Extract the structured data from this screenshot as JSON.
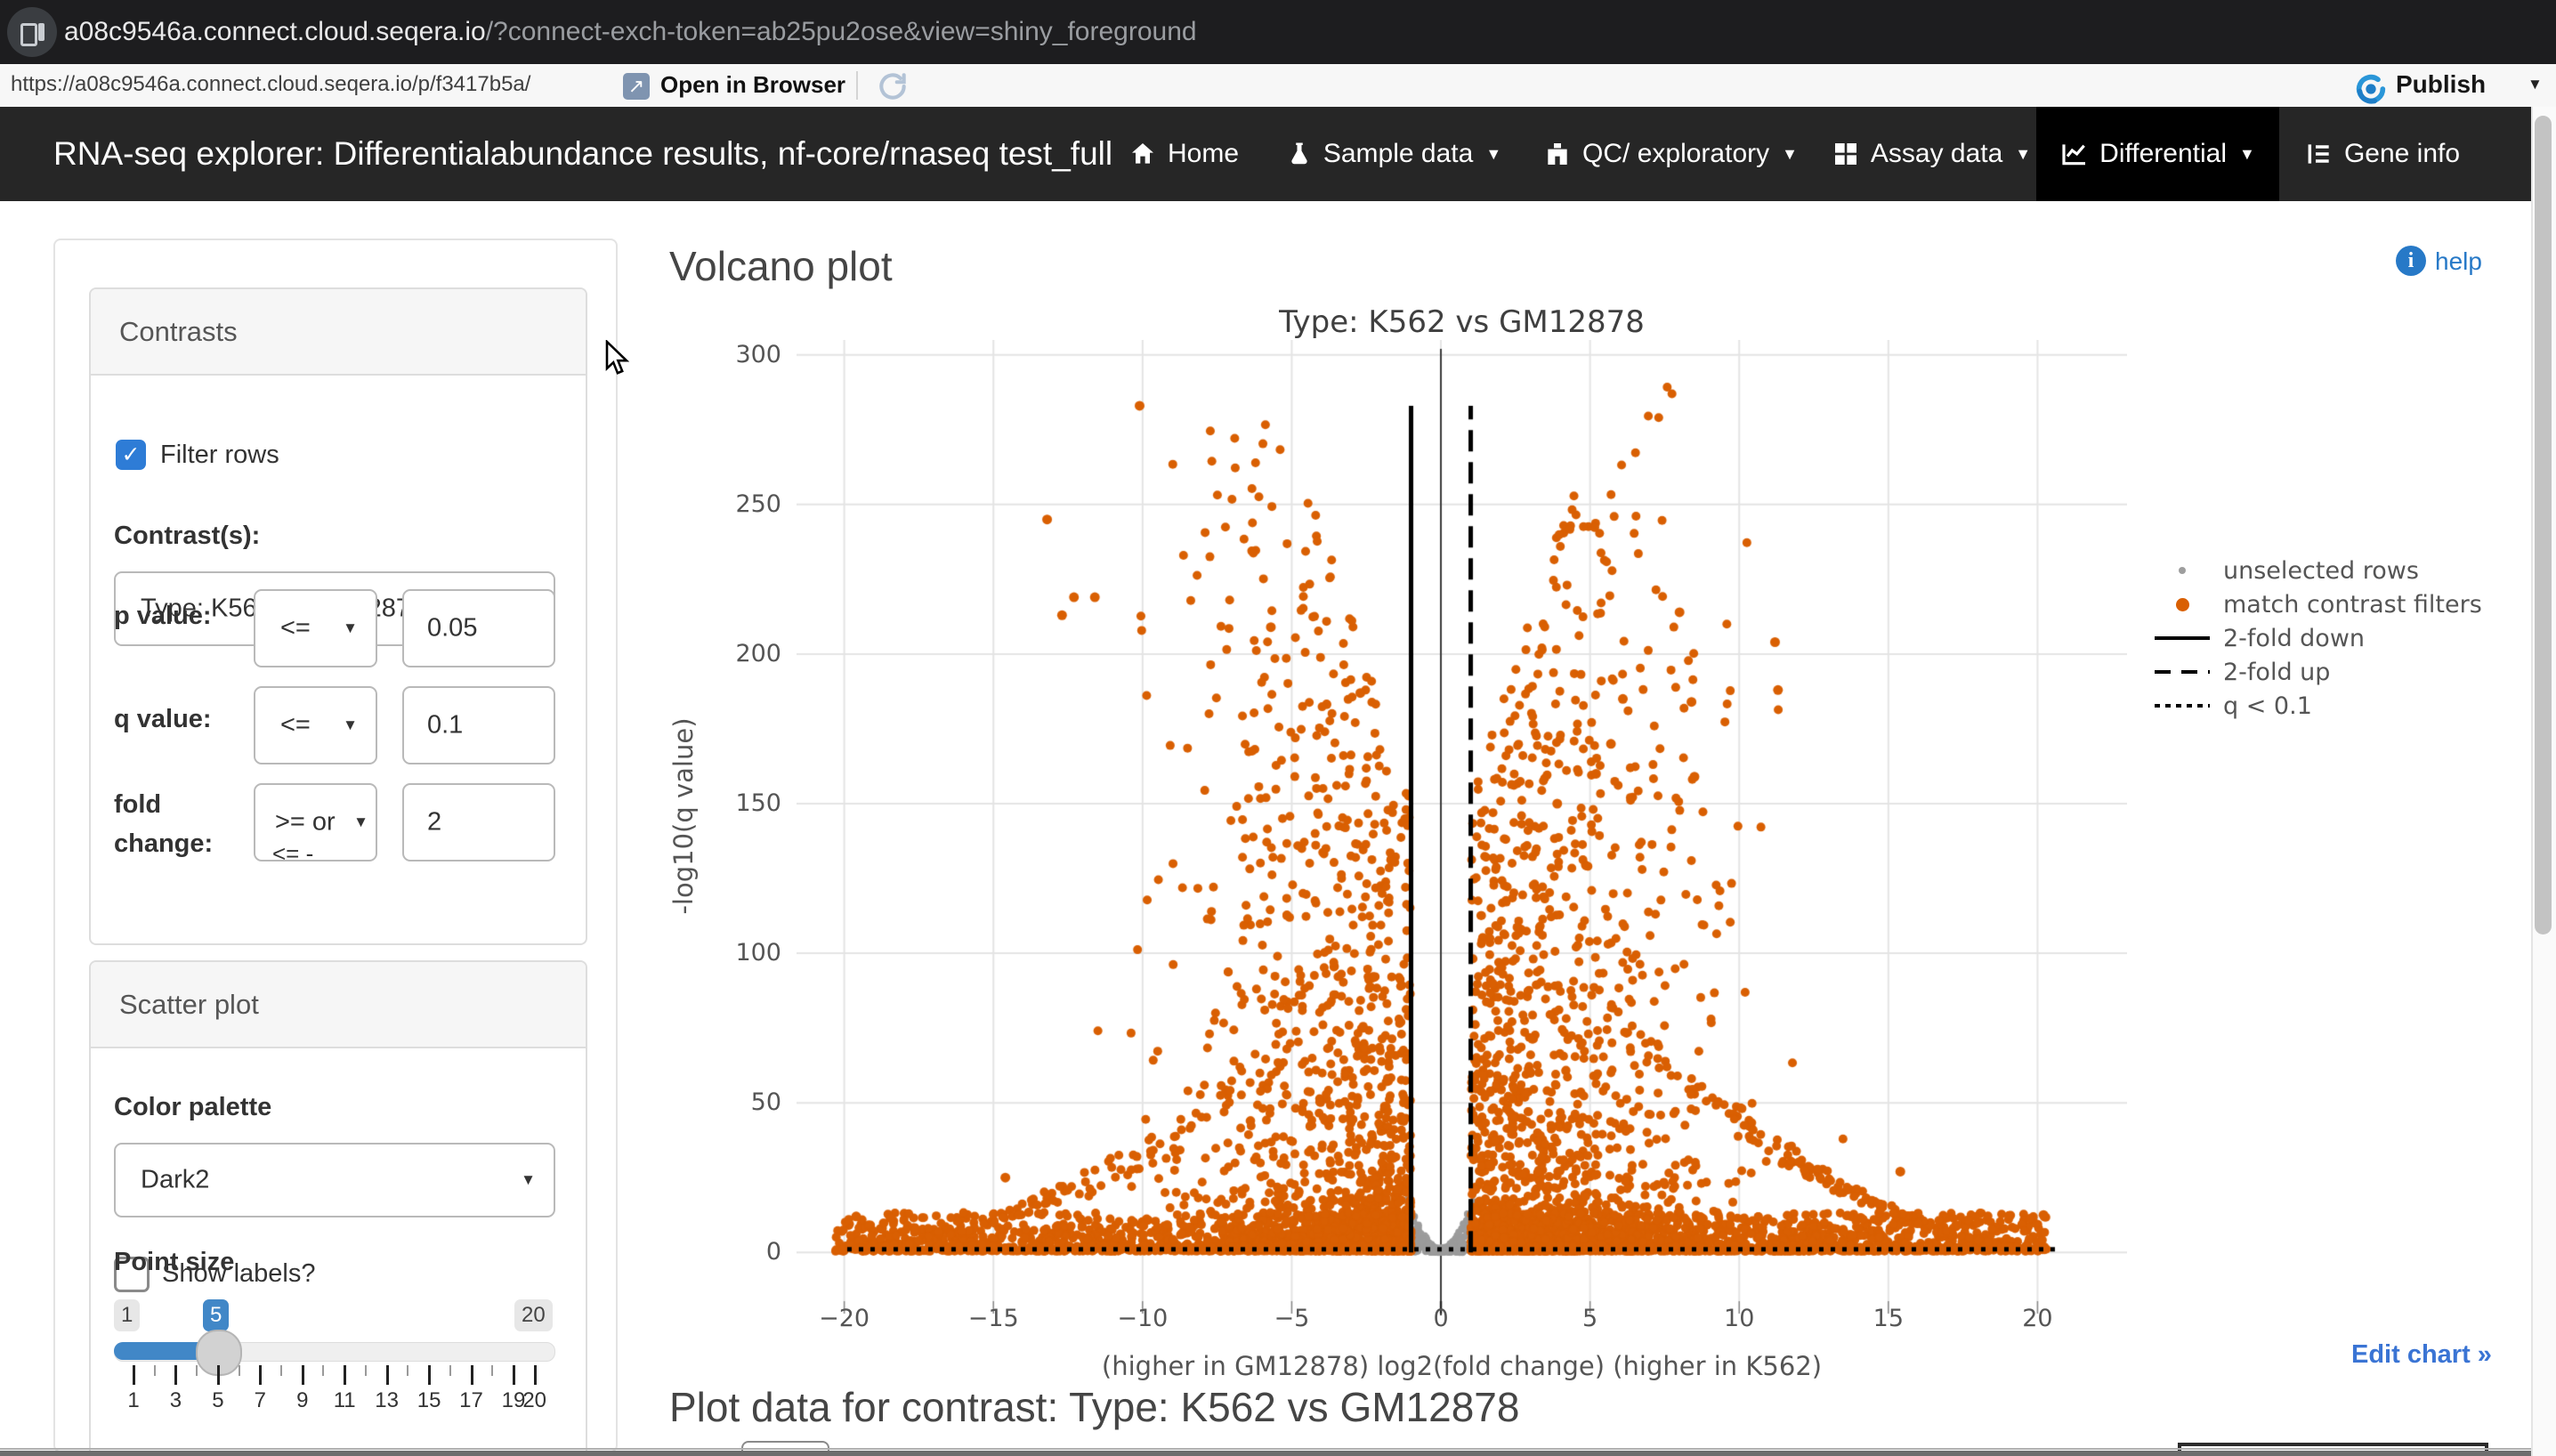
{
  "browser": {
    "address_host": "a08c9546a.connect.cloud.seqera.io",
    "address_query": "/?connect-exch-token=ab25pu2ose&view=shiny_foreground",
    "page_url": "https://a08c9546a.connect.cloud.seqera.io/p/f3417b5a/",
    "open_in_browser_label": "Open in Browser",
    "publish_label": "Publish"
  },
  "navbar": {
    "title": "RNA-seq explorer: Differentialabundance results, nf-core/rnaseq test_full",
    "items": [
      {
        "label": "Home",
        "icon": "home-icon",
        "caret": false,
        "active": false
      },
      {
        "label": "Sample data",
        "icon": "flask-icon",
        "caret": true,
        "active": false
      },
      {
        "label": "QC/ exploratory",
        "icon": "binoculars-icon",
        "caret": true,
        "active": false
      },
      {
        "label": "Assay data",
        "icon": "table-icon",
        "caret": true,
        "active": false
      },
      {
        "label": "Differential",
        "icon": "chart-line-icon",
        "caret": true,
        "active": true
      },
      {
        "label": "Gene info",
        "icon": "list-icon",
        "caret": false,
        "active": false
      }
    ]
  },
  "sidebar": {
    "contrasts": {
      "title": "Contrasts",
      "filter_rows_label": "Filter rows",
      "filter_rows_checked": true,
      "contrast_label": "Contrast(s):",
      "contrast_value": "Type: K562 vs GM12878",
      "p_value_label": "p value:",
      "p_value_op": "<=",
      "p_value": "0.05",
      "q_value_label": "q value:",
      "q_value_op": "<=",
      "q_value": "0.1",
      "fold_change_label_line1": "fold",
      "fold_change_label_line2": "change:",
      "fold_change_op": ">= or",
      "fold_change_op_overflow": "<= -",
      "fold_change": "2"
    },
    "scatter": {
      "title": "Scatter plot",
      "color_palette_label": "Color palette",
      "color_palette_value": "Dark2",
      "show_labels_label": "Show labels?",
      "show_labels_checked": false,
      "point_size_label": "Point size",
      "point_size": {
        "min_badge": "1",
        "value_badge": "5",
        "max_badge": "20",
        "value": 5,
        "tick_labels": [
          1,
          3,
          5,
          7,
          9,
          11,
          13,
          15,
          17,
          19,
          20
        ],
        "tick_min": 1,
        "tick_max": 20
      }
    }
  },
  "main": {
    "heading": "Volcano plot",
    "help_label": "help",
    "edit_chart_label": "Edit chart »",
    "table_heading": "Plot data for contrast: Type: K562 vs GM12878"
  },
  "chart_data": {
    "type": "scatter",
    "title": "Type: K562 vs GM12878",
    "xlabel": "(higher in GM12878)  log2(fold change)  (higher in K562)",
    "ylabel": "-log10(q value)",
    "xlim": [
      -21.6,
      23.0
    ],
    "ylim": [
      -16.3,
      305
    ],
    "x_ticks": [
      -20,
      -15,
      -10,
      -5,
      0,
      5,
      10,
      15,
      20
    ],
    "y_ticks": [
      0,
      50,
      100,
      150,
      200,
      250,
      300
    ],
    "grid": true,
    "grid_color": "#e4e4e4",
    "legend_position": "right",
    "legend": [
      {
        "label": "unselected rows",
        "marker": "dot-small",
        "color": "#9e9e9e"
      },
      {
        "label": "match contrast filters",
        "marker": "dot",
        "color": "#d95f02"
      },
      {
        "label": "2-fold down",
        "marker": "line-solid",
        "color": "#000000"
      },
      {
        "label": "2-fold up",
        "marker": "line-dashed",
        "color": "#000000"
      },
      {
        "label": "q < 0.1",
        "marker": "line-dotted",
        "color": "#000000"
      }
    ],
    "lines": {
      "fold_down_x": -1,
      "fold_up_x": 1,
      "q_threshold_y": 1,
      "zero_x": 0,
      "vline_top_y": 283
    },
    "series": [
      {
        "name": "match contrast filters",
        "color": "#d95f02",
        "point_radius": 5,
        "generator": {
          "seed": 7,
          "right_fraction": 0.54,
          "plume": {
            "n": 3000,
            "sigma": 3.5,
            "x_min": 1.0,
            "x_max": 20.5,
            "envelope_peak": 290,
            "envelope_center": 7.2,
            "envelope_width": 58,
            "envelope_min": 7,
            "power": 3.2
          },
          "band": {
            "n": 2600,
            "height": 13,
            "x_spread": 19.3,
            "x_pow": 1.35,
            "power": 2.2
          },
          "arcs": [
            {
              "side": 1,
              "x0": 5,
              "y0": 85,
              "n": 70
            },
            {
              "side": 1,
              "x0": 8,
              "y0": 55,
              "n": 60
            },
            {
              "side": 1,
              "x0": 11,
              "y0": 36,
              "n": 55
            },
            {
              "side": -1,
              "x0": 6,
              "y0": 60,
              "n": 55
            },
            {
              "side": -1,
              "x0": 9,
              "y0": 34,
              "n": 50
            }
          ]
        },
        "outliers": [
          [
            -10.1,
            283
          ],
          [
            -13.2,
            245
          ],
          [
            -12.3,
            219
          ],
          [
            -11.6,
            219
          ],
          [
            -12.7,
            213
          ],
          [
            -5.7,
            209
          ],
          [
            -2.7,
            187
          ],
          [
            -14.6,
            25
          ],
          [
            -19.6,
            12
          ],
          [
            8.0,
            214
          ],
          [
            11.2,
            204
          ],
          [
            11.3,
            188
          ],
          [
            6.1,
            185
          ],
          [
            8.4,
            184
          ],
          [
            5.7,
            170
          ],
          [
            5.2,
            160
          ],
          [
            8.5,
            159
          ],
          [
            3.9,
            150
          ],
          [
            15.4,
            27
          ],
          [
            20.2,
            12.5
          ]
        ]
      },
      {
        "name": "unselected rows",
        "color": "#9b9b9b",
        "point_radius": 4,
        "generator": {
          "seed": 13,
          "n": 260,
          "x_half_width": 1.13,
          "bowl_coeff": 15,
          "power": 1.3
        }
      }
    ]
  }
}
